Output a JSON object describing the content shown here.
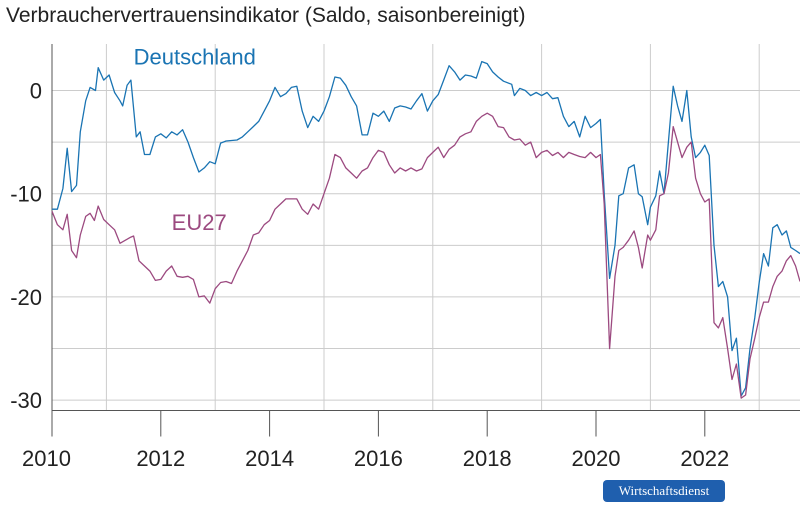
{
  "title": "Verbrauchervertrauensindikator (Saldo, saisonbereinigt)",
  "badge": {
    "label": "Wirtschaftsdienst",
    "color": "#1f5fae"
  },
  "colors": {
    "de": "#1a74b3",
    "eu": "#9c4a80",
    "grid": "#cccccc",
    "axis": "#555555"
  },
  "chart_data": {
    "type": "line",
    "title": "Verbrauchervertrauensindikator (Saldo, saisonbereinigt)",
    "xlabel": "",
    "ylabel": "",
    "xlim": [
      2010.0,
      2023.75
    ],
    "ylim": [
      -31,
      4.5
    ],
    "x_ticks": [
      2010,
      2012,
      2014,
      2016,
      2018,
      2020,
      2022
    ],
    "y_ticks": [
      0,
      -10,
      -20,
      -30
    ],
    "x_grid": [
      2011,
      2013,
      2015,
      2017,
      2019,
      2021,
      2023
    ],
    "y_grid": [
      0,
      -5,
      -10,
      -15,
      -20,
      -25,
      -30
    ],
    "grid": true,
    "series": [
      {
        "name": "Deutschland",
        "points": [
          [
            2010.0,
            -11.5
          ],
          [
            2010.1,
            -11.5
          ],
          [
            2010.2,
            -9.5
          ],
          [
            2010.28,
            -5.6
          ],
          [
            2010.36,
            -9.8
          ],
          [
            2010.45,
            -9.2
          ],
          [
            2010.52,
            -4.0
          ],
          [
            2010.62,
            -1.0
          ],
          [
            2010.7,
            0.3
          ],
          [
            2010.8,
            0.0
          ],
          [
            2010.85,
            2.2
          ],
          [
            2010.95,
            1.0
          ],
          [
            2011.05,
            1.5
          ],
          [
            2011.15,
            -0.2
          ],
          [
            2011.25,
            -1.0
          ],
          [
            2011.3,
            -1.5
          ],
          [
            2011.38,
            0.5
          ],
          [
            2011.45,
            1.0
          ],
          [
            2011.55,
            -4.5
          ],
          [
            2011.62,
            -4.0
          ],
          [
            2011.7,
            -6.2
          ],
          [
            2011.8,
            -6.2
          ],
          [
            2011.9,
            -4.5
          ],
          [
            2012.0,
            -4.2
          ],
          [
            2012.1,
            -4.6
          ],
          [
            2012.2,
            -4.0
          ],
          [
            2012.3,
            -4.3
          ],
          [
            2012.4,
            -3.8
          ],
          [
            2012.5,
            -5.0
          ],
          [
            2012.6,
            -6.5
          ],
          [
            2012.7,
            -7.9
          ],
          [
            2012.8,
            -7.5
          ],
          [
            2012.9,
            -6.9
          ],
          [
            2013.0,
            -7.1
          ],
          [
            2013.1,
            -5.1
          ],
          [
            2013.2,
            -4.9
          ],
          [
            2013.4,
            -4.8
          ],
          [
            2013.5,
            -4.5
          ],
          [
            2013.6,
            -4.0
          ],
          [
            2013.7,
            -3.5
          ],
          [
            2013.8,
            -3.0
          ],
          [
            2013.9,
            -2.0
          ],
          [
            2014.0,
            -1.0
          ],
          [
            2014.1,
            0.3
          ],
          [
            2014.2,
            -0.6
          ],
          [
            2014.3,
            -0.3
          ],
          [
            2014.4,
            0.3
          ],
          [
            2014.5,
            0.4
          ],
          [
            2014.6,
            -2.0
          ],
          [
            2014.7,
            -3.6
          ],
          [
            2014.8,
            -2.5
          ],
          [
            2014.9,
            -3.0
          ],
          [
            2015.0,
            -2.0
          ],
          [
            2015.1,
            -0.6
          ],
          [
            2015.2,
            1.3
          ],
          [
            2015.3,
            1.2
          ],
          [
            2015.4,
            0.5
          ],
          [
            2015.5,
            -0.6
          ],
          [
            2015.6,
            -1.5
          ],
          [
            2015.7,
            -4.3
          ],
          [
            2015.8,
            -4.3
          ],
          [
            2015.9,
            -2.2
          ],
          [
            2016.0,
            -2.5
          ],
          [
            2016.1,
            -2.0
          ],
          [
            2016.2,
            -3.0
          ],
          [
            2016.3,
            -1.7
          ],
          [
            2016.4,
            -1.5
          ],
          [
            2016.5,
            -1.6
          ],
          [
            2016.6,
            -1.8
          ],
          [
            2016.7,
            -1.0
          ],
          [
            2016.8,
            -0.3
          ],
          [
            2016.9,
            -2.0
          ],
          [
            2017.0,
            -1.0
          ],
          [
            2017.1,
            -0.4
          ],
          [
            2017.2,
            1.0
          ],
          [
            2017.3,
            2.4
          ],
          [
            2017.4,
            1.8
          ],
          [
            2017.5,
            1.0
          ],
          [
            2017.6,
            1.5
          ],
          [
            2017.7,
            1.4
          ],
          [
            2017.8,
            1.2
          ],
          [
            2017.9,
            2.8
          ],
          [
            2018.0,
            2.6
          ],
          [
            2018.1,
            1.8
          ],
          [
            2018.2,
            1.3
          ],
          [
            2018.3,
            0.9
          ],
          [
            2018.45,
            0.6
          ],
          [
            2018.5,
            -0.5
          ],
          [
            2018.6,
            0.2
          ],
          [
            2018.7,
            0.0
          ],
          [
            2018.8,
            -0.5
          ],
          [
            2018.9,
            -0.2
          ],
          [
            2019.0,
            -0.5
          ],
          [
            2019.1,
            -0.2
          ],
          [
            2019.2,
            -0.8
          ],
          [
            2019.3,
            -0.7
          ],
          [
            2019.4,
            -2.5
          ],
          [
            2019.5,
            -3.5
          ],
          [
            2019.6,
            -3.0
          ],
          [
            2019.7,
            -4.5
          ],
          [
            2019.8,
            -2.5
          ],
          [
            2019.9,
            -3.6
          ],
          [
            2020.0,
            -3.2
          ],
          [
            2020.08,
            -2.8
          ],
          [
            2020.15,
            -10.0
          ],
          [
            2020.25,
            -18.2
          ],
          [
            2020.35,
            -15.0
          ],
          [
            2020.42,
            -10.2
          ],
          [
            2020.5,
            -10.0
          ],
          [
            2020.6,
            -7.5
          ],
          [
            2020.7,
            -7.2
          ],
          [
            2020.78,
            -10.0
          ],
          [
            2020.85,
            -10.3
          ],
          [
            2020.95,
            -13.0
          ],
          [
            2021.0,
            -11.3
          ],
          [
            2021.1,
            -10.2
          ],
          [
            2021.17,
            -7.8
          ],
          [
            2021.25,
            -10.0
          ],
          [
            2021.33,
            -5.0
          ],
          [
            2021.42,
            0.4
          ],
          [
            2021.5,
            -1.5
          ],
          [
            2021.58,
            -3.0
          ],
          [
            2021.67,
            0.0
          ],
          [
            2021.75,
            -4.5
          ],
          [
            2021.83,
            -6.5
          ],
          [
            2021.92,
            -6.0
          ],
          [
            2022.0,
            -5.3
          ],
          [
            2022.08,
            -6.3
          ],
          [
            2022.17,
            -15.0
          ],
          [
            2022.25,
            -19.0
          ],
          [
            2022.33,
            -18.5
          ],
          [
            2022.42,
            -20.0
          ],
          [
            2022.5,
            -25.2
          ],
          [
            2022.58,
            -24.0
          ],
          [
            2022.67,
            -29.6
          ],
          [
            2022.75,
            -28.8
          ],
          [
            2022.83,
            -25.0
          ],
          [
            2022.92,
            -22.0
          ],
          [
            2023.0,
            -18.6
          ],
          [
            2023.08,
            -15.8
          ],
          [
            2023.17,
            -17.0
          ],
          [
            2023.25,
            -13.3
          ],
          [
            2023.33,
            -13.0
          ],
          [
            2023.42,
            -14.0
          ],
          [
            2023.5,
            -13.6
          ],
          [
            2023.58,
            -15.2
          ],
          [
            2023.67,
            -15.5
          ],
          [
            2023.75,
            -15.8
          ]
        ]
      },
      {
        "name": "EU27",
        "points": [
          [
            2010.0,
            -11.7
          ],
          [
            2010.1,
            -13.0
          ],
          [
            2010.2,
            -13.5
          ],
          [
            2010.28,
            -12.0
          ],
          [
            2010.36,
            -15.5
          ],
          [
            2010.45,
            -16.2
          ],
          [
            2010.52,
            -14.0
          ],
          [
            2010.62,
            -12.2
          ],
          [
            2010.7,
            -11.9
          ],
          [
            2010.78,
            -12.6
          ],
          [
            2010.85,
            -11.2
          ],
          [
            2010.95,
            -12.5
          ],
          [
            2011.05,
            -13.0
          ],
          [
            2011.15,
            -13.5
          ],
          [
            2011.25,
            -14.8
          ],
          [
            2011.35,
            -14.5
          ],
          [
            2011.45,
            -14.2
          ],
          [
            2011.5,
            -14.1
          ],
          [
            2011.6,
            -16.5
          ],
          [
            2011.7,
            -17.0
          ],
          [
            2011.8,
            -17.5
          ],
          [
            2011.9,
            -18.4
          ],
          [
            2012.0,
            -18.3
          ],
          [
            2012.1,
            -17.5
          ],
          [
            2012.2,
            -17.0
          ],
          [
            2012.3,
            -18.0
          ],
          [
            2012.4,
            -18.1
          ],
          [
            2012.5,
            -18.0
          ],
          [
            2012.6,
            -18.3
          ],
          [
            2012.7,
            -20.0
          ],
          [
            2012.8,
            -19.9
          ],
          [
            2012.9,
            -20.6
          ],
          [
            2013.0,
            -19.2
          ],
          [
            2013.1,
            -18.6
          ],
          [
            2013.2,
            -18.5
          ],
          [
            2013.3,
            -18.7
          ],
          [
            2013.4,
            -17.5
          ],
          [
            2013.5,
            -16.5
          ],
          [
            2013.6,
            -15.5
          ],
          [
            2013.7,
            -14.0
          ],
          [
            2013.8,
            -13.8
          ],
          [
            2013.9,
            -13.0
          ],
          [
            2014.0,
            -12.6
          ],
          [
            2014.1,
            -11.5
          ],
          [
            2014.2,
            -11.0
          ],
          [
            2014.3,
            -10.5
          ],
          [
            2014.4,
            -10.5
          ],
          [
            2014.5,
            -10.5
          ],
          [
            2014.6,
            -11.5
          ],
          [
            2014.7,
            -12.0
          ],
          [
            2014.8,
            -11.0
          ],
          [
            2014.9,
            -11.5
          ],
          [
            2015.0,
            -10.0
          ],
          [
            2015.1,
            -8.5
          ],
          [
            2015.2,
            -6.2
          ],
          [
            2015.3,
            -6.5
          ],
          [
            2015.4,
            -7.5
          ],
          [
            2015.5,
            -8.0
          ],
          [
            2015.6,
            -8.5
          ],
          [
            2015.7,
            -7.8
          ],
          [
            2015.8,
            -7.5
          ],
          [
            2015.9,
            -6.5
          ],
          [
            2016.0,
            -5.8
          ],
          [
            2016.1,
            -6.0
          ],
          [
            2016.2,
            -7.2
          ],
          [
            2016.3,
            -8.0
          ],
          [
            2016.4,
            -7.5
          ],
          [
            2016.5,
            -7.8
          ],
          [
            2016.6,
            -7.5
          ],
          [
            2016.7,
            -7.8
          ],
          [
            2016.8,
            -7.6
          ],
          [
            2016.9,
            -6.5
          ],
          [
            2017.0,
            -6.0
          ],
          [
            2017.1,
            -5.5
          ],
          [
            2017.2,
            -6.5
          ],
          [
            2017.3,
            -5.7
          ],
          [
            2017.4,
            -5.3
          ],
          [
            2017.5,
            -4.5
          ],
          [
            2017.6,
            -4.2
          ],
          [
            2017.7,
            -4.0
          ],
          [
            2017.8,
            -3.0
          ],
          [
            2017.9,
            -2.5
          ],
          [
            2018.0,
            -2.2
          ],
          [
            2018.1,
            -2.5
          ],
          [
            2018.2,
            -3.5
          ],
          [
            2018.3,
            -3.6
          ],
          [
            2018.4,
            -4.5
          ],
          [
            2018.5,
            -4.8
          ],
          [
            2018.6,
            -4.7
          ],
          [
            2018.7,
            -5.3
          ],
          [
            2018.8,
            -5.0
          ],
          [
            2018.9,
            -6.5
          ],
          [
            2019.0,
            -6.0
          ],
          [
            2019.1,
            -5.8
          ],
          [
            2019.2,
            -6.3
          ],
          [
            2019.3,
            -6.0
          ],
          [
            2019.4,
            -6.5
          ],
          [
            2019.5,
            -6.0
          ],
          [
            2019.6,
            -6.2
          ],
          [
            2019.7,
            -6.4
          ],
          [
            2019.8,
            -6.5
          ],
          [
            2019.9,
            -6.0
          ],
          [
            2020.0,
            -6.5
          ],
          [
            2020.08,
            -6.2
          ],
          [
            2020.15,
            -11.0
          ],
          [
            2020.25,
            -25.0
          ],
          [
            2020.35,
            -18.0
          ],
          [
            2020.42,
            -15.5
          ],
          [
            2020.5,
            -15.2
          ],
          [
            2020.6,
            -14.5
          ],
          [
            2020.7,
            -13.6
          ],
          [
            2020.78,
            -15.2
          ],
          [
            2020.85,
            -17.2
          ],
          [
            2020.95,
            -14.0
          ],
          [
            2021.0,
            -14.5
          ],
          [
            2021.1,
            -13.5
          ],
          [
            2021.17,
            -10.2
          ],
          [
            2021.25,
            -10.0
          ],
          [
            2021.33,
            -8.0
          ],
          [
            2021.42,
            -3.5
          ],
          [
            2021.5,
            -5.0
          ],
          [
            2021.58,
            -6.5
          ],
          [
            2021.67,
            -5.5
          ],
          [
            2021.75,
            -5.0
          ],
          [
            2021.83,
            -8.5
          ],
          [
            2021.92,
            -10.0
          ],
          [
            2022.0,
            -10.8
          ],
          [
            2022.08,
            -10.5
          ],
          [
            2022.17,
            -22.5
          ],
          [
            2022.25,
            -23.0
          ],
          [
            2022.33,
            -22.0
          ],
          [
            2022.42,
            -25.0
          ],
          [
            2022.5,
            -28.0
          ],
          [
            2022.58,
            -26.5
          ],
          [
            2022.67,
            -29.8
          ],
          [
            2022.75,
            -29.5
          ],
          [
            2022.83,
            -26.0
          ],
          [
            2022.92,
            -24.0
          ],
          [
            2023.0,
            -22.0
          ],
          [
            2023.08,
            -20.5
          ],
          [
            2023.17,
            -20.5
          ],
          [
            2023.25,
            -19.0
          ],
          [
            2023.33,
            -18.0
          ],
          [
            2023.42,
            -17.5
          ],
          [
            2023.5,
            -16.5
          ],
          [
            2023.58,
            -16.0
          ],
          [
            2023.67,
            -17.0
          ],
          [
            2023.75,
            -18.5
          ]
        ]
      }
    ],
    "labels": [
      {
        "text": "Deutschland",
        "series": 0,
        "x": 2011.5,
        "y": 2.5
      },
      {
        "text": "EU27",
        "series": 1,
        "x": 2012.2,
        "y": -13.5
      }
    ]
  }
}
